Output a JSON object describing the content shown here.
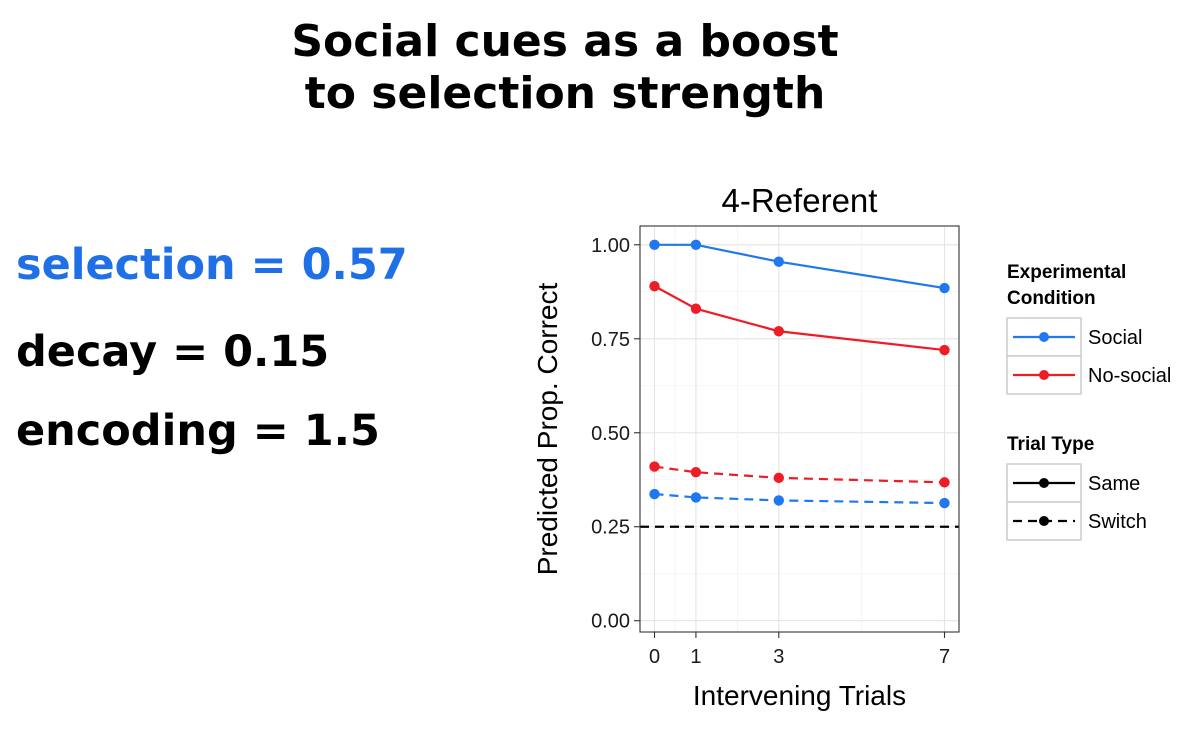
{
  "slide": {
    "title_line1": "Social cues as a boost",
    "title_line2": "to selection strength",
    "params": [
      {
        "text": "selection = 0.57",
        "color": "#1f6fe6"
      },
      {
        "text": "decay = 0.15",
        "color": "#000000"
      },
      {
        "text": "encoding  = 1.5",
        "color": "#000000"
      }
    ]
  },
  "chart_data": {
    "type": "line",
    "title": "4-Referent",
    "xlabel": "Intervening Trials",
    "ylabel": "Predicted Prop. Correct",
    "x": [
      0,
      1,
      3,
      7
    ],
    "xticks": [
      0,
      1,
      3,
      7
    ],
    "xlim": [
      -0.35,
      7.35
    ],
    "ylim": [
      -0.03,
      1.05
    ],
    "yticks": [
      0.0,
      0.25,
      0.5,
      0.75,
      1.0
    ],
    "ytick_labels": [
      "0.00",
      "0.25",
      "0.50",
      "0.75",
      "1.00"
    ],
    "grid": true,
    "series": [
      {
        "name": "Social Same",
        "condition": "Social",
        "trial_type": "Same",
        "color": "#1f78f0",
        "dashed": false,
        "values": [
          1.0,
          1.0,
          0.955,
          0.885
        ]
      },
      {
        "name": "No-social Same",
        "condition": "No-social",
        "trial_type": "Same",
        "color": "#ee1c25",
        "dashed": false,
        "values": [
          0.89,
          0.83,
          0.77,
          0.72
        ]
      },
      {
        "name": "No-social Switch",
        "condition": "No-social",
        "trial_type": "Switch",
        "color": "#ee1c25",
        "dashed": true,
        "values": [
          0.41,
          0.395,
          0.38,
          0.368
        ]
      },
      {
        "name": "Social Switch",
        "condition": "Social",
        "trial_type": "Switch",
        "color": "#1f78f0",
        "dashed": true,
        "values": [
          0.337,
          0.328,
          0.32,
          0.313
        ]
      }
    ],
    "reference_line": {
      "y": 0.25,
      "style": "dashed",
      "color": "#000000"
    },
    "legend": {
      "placement": "right",
      "condition_title_line1": "Experimental",
      "condition_title_line2": "Condition",
      "conditions": [
        {
          "label": "Social",
          "color": "#1f78f0"
        },
        {
          "label": "No-social",
          "color": "#ee1c25"
        }
      ],
      "type_title": "Trial Type",
      "types": [
        {
          "label": "Same",
          "dashed": false
        },
        {
          "label": "Switch",
          "dashed": true
        }
      ]
    }
  }
}
